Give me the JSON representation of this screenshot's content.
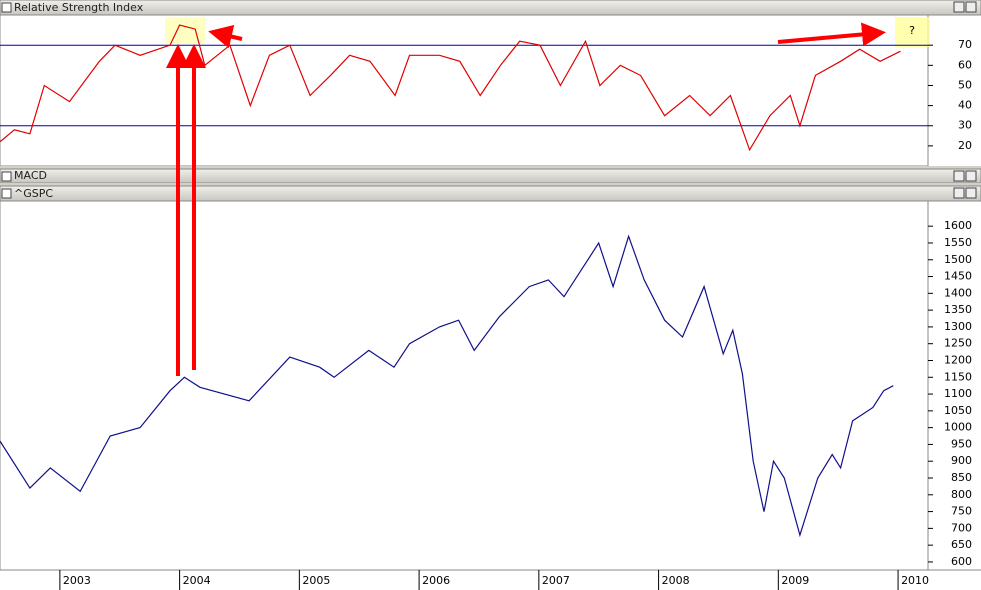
{
  "chart_data": [
    {
      "type": "line",
      "title": "Relative Strength Index",
      "color": "#e00000",
      "x": [
        2002.5,
        2002.62,
        2002.75,
        2002.87,
        2003.08,
        2003.33,
        2003.46,
        2003.67,
        2003.92,
        2004.0,
        2004.13,
        2004.21,
        2004.42,
        2004.59,
        2004.75,
        2004.92,
        2005.09,
        2005.26,
        2005.42,
        2005.59,
        2005.8,
        2005.92,
        2006.17,
        2006.34,
        2006.51,
        2006.68,
        2006.84,
        2007.01,
        2007.18,
        2007.39,
        2007.51,
        2007.68,
        2007.85,
        2008.05,
        2008.26,
        2008.43,
        2008.6,
        2008.76,
        2008.93,
        2009.1,
        2009.18,
        2009.31,
        2009.52,
        2009.68,
        2009.85,
        2010.02
      ],
      "values": [
        22,
        28,
        26,
        50,
        42,
        62,
        70,
        65,
        70,
        80,
        78,
        60,
        70,
        40,
        65,
        70,
        45,
        55,
        65,
        62,
        45,
        65,
        65,
        62,
        45,
        60,
        72,
        70,
        50,
        72,
        50,
        60,
        55,
        35,
        45,
        35,
        45,
        18,
        35,
        45,
        30,
        55,
        62,
        68,
        62,
        67
      ],
      "xlim": [
        2002.5,
        2010.25
      ],
      "ylim": [
        10,
        85
      ],
      "yticks": [
        20,
        30,
        40,
        50,
        60,
        70
      ],
      "reference_lines": [
        30,
        70
      ],
      "reference_color": "#0000a0",
      "annotation": "?"
    },
    {
      "type": "empty",
      "title": "MACD"
    },
    {
      "type": "line",
      "title": "^GSPC",
      "color": "#10108c",
      "x": [
        2002.5,
        2002.75,
        2002.92,
        2003.17,
        2003.42,
        2003.67,
        2003.92,
        2004.04,
        2004.17,
        2004.58,
        2004.92,
        2005.17,
        2005.29,
        2005.58,
        2005.79,
        2005.92,
        2006.17,
        2006.33,
        2006.46,
        2006.67,
        2006.92,
        2007.08,
        2007.21,
        2007.5,
        2007.62,
        2007.75,
        2007.88,
        2008.05,
        2008.2,
        2008.38,
        2008.54,
        2008.62,
        2008.7,
        2008.79,
        2008.88,
        2008.96,
        2009.05,
        2009.18,
        2009.33,
        2009.45,
        2009.52,
        2009.62,
        2009.79,
        2009.88,
        2009.96
      ],
      "values": [
        960,
        820,
        880,
        810,
        975,
        1000,
        1110,
        1150,
        1120,
        1080,
        1210,
        1180,
        1150,
        1230,
        1180,
        1250,
        1300,
        1320,
        1230,
        1330,
        1420,
        1440,
        1390,
        1550,
        1420,
        1570,
        1440,
        1320,
        1270,
        1420,
        1220,
        1290,
        1160,
        900,
        750,
        900,
        850,
        680,
        850,
        920,
        880,
        1020,
        1060,
        1110,
        1125
      ],
      "xlim": [
        2002.5,
        2010.25
      ],
      "xticks": [
        2003,
        2004,
        2005,
        2006,
        2007,
        2008,
        2009,
        2010
      ],
      "ylim": [
        576,
        1675
      ],
      "yticks": [
        600,
        650,
        700,
        750,
        800,
        850,
        900,
        950,
        1000,
        1050,
        1100,
        1150,
        1200,
        1250,
        1300,
        1350,
        1400,
        1450,
        1500,
        1550,
        1600
      ]
    }
  ]
}
